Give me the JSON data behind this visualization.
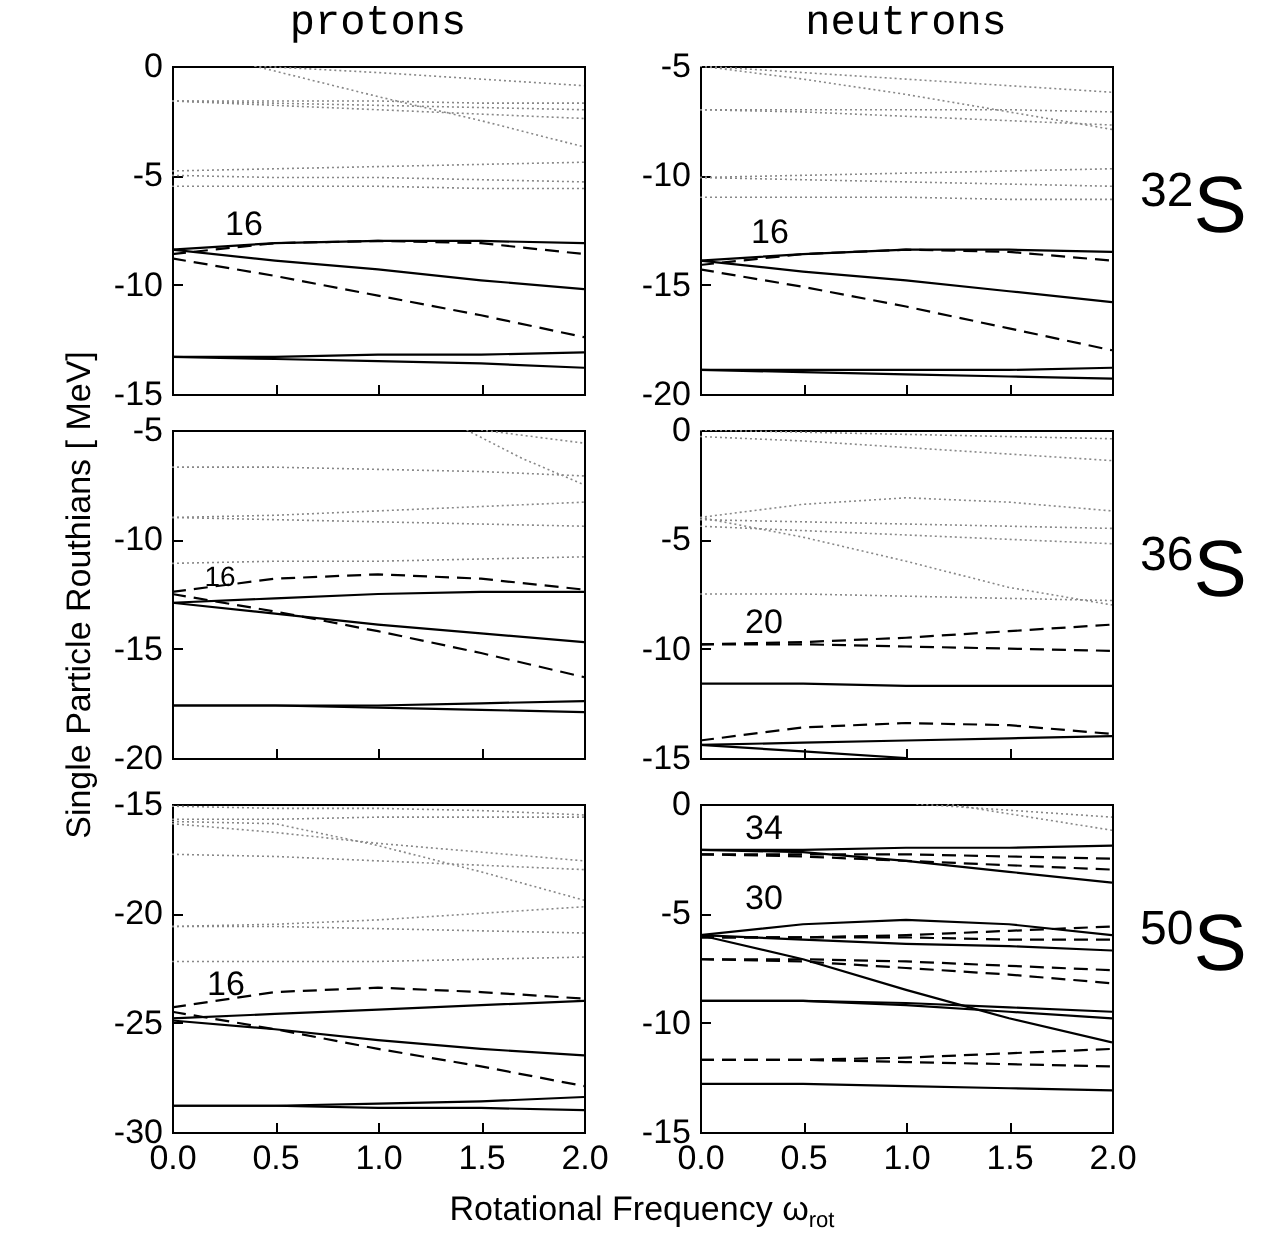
{
  "chart_data": [
    {
      "type": "line",
      "title": "protons",
      "x": [
        0,
        0.5,
        1,
        1.5,
        2
      ],
      "xlim": [
        0,
        2
      ],
      "xticks": [
        0,
        0.5,
        1,
        1.5,
        2
      ],
      "ylim": [
        -15,
        0
      ],
      "yticks": [
        0,
        -5,
        -10,
        -15
      ],
      "tick_labels": "y",
      "annotations": [
        "16"
      ],
      "series": [
        {
          "color": "#888888",
          "line_style": "dotted",
          "x": [
            0.4,
            1,
            1.5,
            2
          ],
          "values": [
            0,
            -0.3,
            -0.6,
            -0.9
          ]
        },
        {
          "color": "#888888",
          "line_style": "dotted",
          "x": [
            0.4,
            1,
            1.5,
            2
          ],
          "values": [
            0,
            -1.4,
            -2.5,
            -3.7
          ]
        },
        {
          "color": "#888888",
          "line_style": "dotted",
          "values": [
            -1.6,
            -1.6,
            -1.6,
            -1.7,
            -1.7
          ]
        },
        {
          "color": "#888888",
          "line_style": "dotted",
          "values": [
            -1.6,
            -1.7,
            -1.8,
            -1.9,
            -2.0
          ]
        },
        {
          "color": "#888888",
          "line_style": "dotted",
          "values": [
            -1.6,
            -1.8,
            -2.0,
            -2.2,
            -2.4
          ]
        },
        {
          "color": "#888888",
          "line_style": "dotted",
          "values": [
            -4.8,
            -4.7,
            -4.6,
            -4.5,
            -4.4
          ]
        },
        {
          "color": "#888888",
          "line_style": "dotted",
          "values": [
            -5.0,
            -5.1,
            -5.1,
            -5.2,
            -5.3
          ]
        },
        {
          "color": "#888888",
          "line_style": "dotted",
          "values": [
            -5.5,
            -5.5,
            -5.5,
            -5.6,
            -5.6
          ]
        },
        {
          "color": "#000000",
          "line_style": "solid",
          "values": [
            -8.4,
            -8.1,
            -8.0,
            -8.0,
            -8.1
          ]
        },
        {
          "color": "#000000",
          "line_style": "solid",
          "values": [
            -8.4,
            -8.9,
            -9.3,
            -9.8,
            -10.2
          ]
        },
        {
          "color": "#000000",
          "line_style": "solid",
          "values": [
            -13.3,
            -13.3,
            -13.2,
            -13.2,
            -13.1
          ]
        },
        {
          "color": "#000000",
          "line_style": "solid",
          "values": [
            -13.3,
            -13.4,
            -13.5,
            -13.6,
            -13.8
          ]
        },
        {
          "color": "#000000",
          "line_style": "dashed",
          "values": [
            -8.6,
            -8.1,
            -8.0,
            -8.1,
            -8.6
          ]
        },
        {
          "color": "#000000",
          "line_style": "dashed",
          "values": [
            -8.8,
            -9.6,
            -10.5,
            -11.4,
            -12.4
          ]
        }
      ]
    },
    {
      "type": "line",
      "title": "neutrons",
      "x": [
        0,
        0.5,
        1,
        1.5,
        2
      ],
      "xlim": [
        0,
        2
      ],
      "xticks": [
        0,
        0.5,
        1,
        1.5,
        2
      ],
      "ylim": [
        -20,
        -5
      ],
      "yticks": [
        -5,
        -10,
        -15,
        -20
      ],
      "tick_labels": "y",
      "annotations": [
        "16",
        "$^{32}$S"
      ],
      "series": [
        {
          "color": "#888888",
          "line_style": "dotted",
          "values": [
            -5.0,
            -5.3,
            -5.6,
            -5.9,
            -6.2
          ]
        },
        {
          "color": "#888888",
          "line_style": "dotted",
          "values": [
            -5.0,
            -5.6,
            -6.3,
            -7.1,
            -7.9
          ]
        },
        {
          "color": "#888888",
          "line_style": "dotted",
          "values": [
            -7.0,
            -7.0,
            -7.0,
            -7.0,
            -7.1
          ]
        },
        {
          "color": "#888888",
          "line_style": "dotted",
          "values": [
            -7.0,
            -7.1,
            -7.3,
            -7.5,
            -7.7
          ]
        },
        {
          "color": "#888888",
          "line_style": "dotted",
          "values": [
            -10.1,
            -10.0,
            -9.9,
            -9.8,
            -9.7
          ]
        },
        {
          "color": "#888888",
          "line_style": "dotted",
          "values": [
            -10.1,
            -10.2,
            -10.3,
            -10.4,
            -10.5
          ]
        },
        {
          "color": "#888888",
          "line_style": "dotted",
          "values": [
            -11.0,
            -11.0,
            -11.0,
            -11.1,
            -11.1
          ]
        },
        {
          "color": "#000000",
          "line_style": "solid",
          "values": [
            -13.9,
            -13.6,
            -13.4,
            -13.4,
            -13.5
          ]
        },
        {
          "color": "#000000",
          "line_style": "solid",
          "values": [
            -13.9,
            -14.4,
            -14.8,
            -15.3,
            -15.8
          ]
        },
        {
          "color": "#000000",
          "line_style": "solid",
          "values": [
            -18.9,
            -18.9,
            -18.9,
            -18.9,
            -18.8
          ]
        },
        {
          "color": "#000000",
          "line_style": "solid",
          "values": [
            -18.9,
            -19.0,
            -19.1,
            -19.2,
            -19.3
          ]
        },
        {
          "color": "#000000",
          "line_style": "dashed",
          "values": [
            -14.1,
            -13.6,
            -13.4,
            -13.5,
            -13.9
          ]
        },
        {
          "color": "#000000",
          "line_style": "dashed",
          "values": [
            -14.3,
            -15.1,
            -16.0,
            -17.0,
            -18.0
          ]
        }
      ]
    },
    {
      "type": "line",
      "ylabel": "Single Particle Routhians [ MeV]",
      "x": [
        0,
        0.5,
        1,
        1.5,
        2
      ],
      "xlim": [
        0,
        2
      ],
      "xticks": [
        0,
        0.5,
        1,
        1.5,
        2
      ],
      "ylim": [
        -20,
        -5
      ],
      "yticks": [
        -5,
        -10,
        -15,
        -20
      ],
      "tick_labels": "y",
      "annotations": [
        "16"
      ],
      "series": [
        {
          "color": "#888888",
          "line_style": "dotted",
          "x": [
            1.43,
            1.7,
            2
          ],
          "values": [
            -5.0,
            -6.3,
            -7.5
          ]
        },
        {
          "color": "#888888",
          "line_style": "dotted",
          "x": [
            1.5,
            2
          ],
          "values": [
            -5.0,
            -5.6
          ]
        },
        {
          "color": "#888888",
          "line_style": "dotted",
          "values": [
            -6.7,
            -6.7,
            -6.8,
            -6.9,
            -7.1
          ]
        },
        {
          "color": "#888888",
          "line_style": "dotted",
          "values": [
            -9.0,
            -8.9,
            -8.7,
            -8.5,
            -8.3
          ]
        },
        {
          "color": "#888888",
          "line_style": "dotted",
          "values": [
            -9.0,
            -9.1,
            -9.2,
            -9.3,
            -9.4
          ]
        },
        {
          "color": "#888888",
          "line_style": "dotted",
          "values": [
            -11.1,
            -11.0,
            -11.0,
            -10.9,
            -10.8
          ]
        },
        {
          "color": "#000000",
          "line_style": "solid",
          "values": [
            -12.9,
            -12.7,
            -12.5,
            -12.4,
            -12.4
          ]
        },
        {
          "color": "#000000",
          "line_style": "solid",
          "values": [
            -12.9,
            -13.4,
            -13.9,
            -14.3,
            -14.7
          ]
        },
        {
          "color": "#000000",
          "line_style": "solid",
          "values": [
            -17.6,
            -17.6,
            -17.6,
            -17.5,
            -17.4
          ]
        },
        {
          "color": "#000000",
          "line_style": "solid",
          "values": [
            -17.6,
            -17.6,
            -17.7,
            -17.8,
            -17.9
          ]
        },
        {
          "color": "#000000",
          "line_style": "dashed",
          "values": [
            -12.4,
            -11.8,
            -11.6,
            -11.8,
            -12.3
          ]
        },
        {
          "color": "#000000",
          "line_style": "dashed",
          "values": [
            -12.5,
            -13.3,
            -14.2,
            -15.2,
            -16.3
          ]
        }
      ]
    },
    {
      "type": "line",
      "x": [
        0,
        0.5,
        1,
        1.5,
        2
      ],
      "xlim": [
        0,
        2
      ],
      "xticks": [
        0,
        0.5,
        1,
        1.5,
        2
      ],
      "ylim": [
        -15,
        0
      ],
      "yticks": [
        0,
        -5,
        -10,
        -15
      ],
      "tick_labels": "y",
      "annotations": [
        "20",
        "$^{36}$S"
      ],
      "series": [
        {
          "color": "#888888",
          "line_style": "dotted",
          "values": [
            0,
            -0.1,
            -0.2,
            -0.3,
            -0.4
          ]
        },
        {
          "color": "#888888",
          "line_style": "dotted",
          "values": [
            -0.3,
            -0.5,
            -0.8,
            -1.1,
            -1.4
          ]
        },
        {
          "color": "#888888",
          "line_style": "dotted",
          "values": [
            -4.0,
            -3.4,
            -3.1,
            -3.3,
            -3.7
          ]
        },
        {
          "color": "#888888",
          "line_style": "dotted",
          "values": [
            -4.1,
            -4.2,
            -4.3,
            -4.4,
            -4.5
          ]
        },
        {
          "color": "#888888",
          "line_style": "dotted",
          "values": [
            -4.4,
            -4.6,
            -4.8,
            -5.0,
            -5.2
          ]
        },
        {
          "color": "#888888",
          "line_style": "dotted",
          "values": [
            -4.0,
            -4.9,
            -6.0,
            -7.2,
            -8.0
          ]
        },
        {
          "color": "#888888",
          "line_style": "dotted",
          "values": [
            -7.5,
            -7.5,
            -7.6,
            -7.7,
            -7.8
          ]
        },
        {
          "color": "#000000",
          "line_style": "solid",
          "values": [
            -11.6,
            -11.6,
            -11.7,
            -11.7,
            -11.7
          ]
        },
        {
          "color": "#000000",
          "line_style": "solid",
          "values": [
            -14.4,
            -14.3,
            -14.2,
            -14.1,
            -14.0
          ]
        },
        {
          "color": "#000000",
          "line_style": "solid",
          "x": [
            0,
            0.5,
            1
          ],
          "values": [
            -14.4,
            -14.7,
            -15.0
          ]
        },
        {
          "color": "#000000",
          "line_style": "dashed",
          "values": [
            -9.8,
            -9.7,
            -9.5,
            -9.2,
            -8.9
          ]
        },
        {
          "color": "#000000",
          "line_style": "dashed",
          "values": [
            -9.8,
            -9.8,
            -9.9,
            -10.0,
            -10.1
          ]
        },
        {
          "color": "#000000",
          "line_style": "dashed",
          "values": [
            -14.2,
            -13.6,
            -13.4,
            -13.5,
            -13.9
          ]
        }
      ]
    },
    {
      "type": "line",
      "xlabel": "Rotational Frequency ω$_{rot}$",
      "x": [
        0,
        0.5,
        1,
        1.5,
        2
      ],
      "xlim": [
        0,
        2
      ],
      "xticks": [
        {
          "value": 0,
          "label": "0.0"
        },
        {
          "value": 0.5,
          "label": "0.5"
        },
        {
          "value": 1,
          "label": "1.0"
        },
        {
          "value": 1.5,
          "label": "1.5"
        },
        {
          "value": 2,
          "label": "2.0"
        }
      ],
      "ylim": [
        -30,
        -15
      ],
      "yticks": [
        -15,
        -20,
        -25,
        -30
      ],
      "annotations": [
        "16"
      ],
      "series": [
        {
          "color": "#888888",
          "line_style": "dotted",
          "values": [
            -15.1,
            -15.2,
            -15.2,
            -15.3,
            -15.5
          ]
        },
        {
          "color": "#888888",
          "line_style": "dotted",
          "values": [
            -15.7,
            -15.7,
            -15.6,
            -15.6,
            -15.6
          ]
        },
        {
          "color": "#888888",
          "line_style": "dotted",
          "values": [
            -15.8,
            -15.9,
            -16.9,
            -18.1,
            -19.4
          ]
        },
        {
          "color": "#888888",
          "line_style": "dotted",
          "values": [
            -15.9,
            -16.3,
            -16.8,
            -17.2,
            -17.6
          ]
        },
        {
          "color": "#888888",
          "line_style": "dotted",
          "values": [
            -17.3,
            -17.4,
            -17.6,
            -17.8,
            -18.0
          ]
        },
        {
          "color": "#888888",
          "line_style": "dotted",
          "values": [
            -20.6,
            -20.5,
            -20.3,
            -20.0,
            -19.7
          ]
        },
        {
          "color": "#888888",
          "line_style": "dotted",
          "values": [
            -20.6,
            -20.6,
            -20.7,
            -20.8,
            -20.9
          ]
        },
        {
          "color": "#888888",
          "line_style": "dotted",
          "values": [
            -22.2,
            -22.2,
            -22.2,
            -22.1,
            -22.0
          ]
        },
        {
          "color": "#000000",
          "line_style": "solid",
          "values": [
            -24.8,
            -24.6,
            -24.4,
            -24.2,
            -24.0
          ]
        },
        {
          "color": "#000000",
          "line_style": "solid",
          "values": [
            -24.9,
            -25.3,
            -25.8,
            -26.2,
            -26.5
          ]
        },
        {
          "color": "#000000",
          "line_style": "solid",
          "values": [
            -28.8,
            -28.8,
            -28.7,
            -28.6,
            -28.4
          ]
        },
        {
          "color": "#000000",
          "line_style": "solid",
          "values": [
            -28.8,
            -28.8,
            -28.9,
            -28.9,
            -29.0
          ]
        },
        {
          "color": "#000000",
          "line_style": "dashed",
          "values": [
            -24.3,
            -23.6,
            -23.4,
            -23.6,
            -23.9
          ]
        },
        {
          "color": "#000000",
          "line_style": "dashed",
          "values": [
            -24.5,
            -25.3,
            -26.2,
            -27.0,
            -27.9
          ]
        }
      ]
    },
    {
      "type": "line",
      "x": [
        0,
        0.5,
        1,
        1.5,
        2
      ],
      "xlim": [
        0,
        2
      ],
      "xticks": [
        {
          "value": 0,
          "label": "0.0"
        },
        {
          "value": 0.5,
          "label": "0.5"
        },
        {
          "value": 1,
          "label": "1.0"
        },
        {
          "value": 1.5,
          "label": "1.5"
        },
        {
          "value": 2,
          "label": "2.0"
        }
      ],
      "ylim": [
        -15,
        0
      ],
      "yticks": [
        0,
        -5,
        -10,
        -15
      ],
      "annotations": [
        "34",
        "30",
        "$^{50}$S"
      ],
      "series": [
        {
          "color": "#888888",
          "line_style": "dotted",
          "x": [
            1.05,
            2
          ],
          "values": [
            0,
            -0.6
          ]
        },
        {
          "color": "#888888",
          "line_style": "dotted",
          "x": [
            1.2,
            2
          ],
          "values": [
            0,
            -1.2
          ]
        },
        {
          "color": "#000000",
          "line_style": "solid",
          "values": [
            -2.1,
            -2.1,
            -2.0,
            -2.0,
            -1.9
          ]
        },
        {
          "color": "#000000",
          "line_style": "solid",
          "values": [
            -2.1,
            -2.2,
            -2.6,
            -3.1,
            -3.6
          ]
        },
        {
          "color": "#000000",
          "line_style": "solid",
          "values": [
            -6.0,
            -5.5,
            -5.3,
            -5.5,
            -6.0
          ]
        },
        {
          "color": "#000000",
          "line_style": "solid",
          "values": [
            -6.0,
            -6.2,
            -6.4,
            -6.5,
            -6.7
          ]
        },
        {
          "color": "#000000",
          "line_style": "solid",
          "values": [
            -6.0,
            -7.1,
            -8.5,
            -9.8,
            -10.9
          ]
        },
        {
          "color": "#000000",
          "line_style": "solid",
          "values": [
            -9.0,
            -9.0,
            -9.1,
            -9.3,
            -9.5
          ]
        },
        {
          "color": "#000000",
          "line_style": "solid",
          "values": [
            -9.0,
            -9.0,
            -9.2,
            -9.5,
            -9.8
          ]
        },
        {
          "color": "#000000",
          "line_style": "solid",
          "values": [
            -12.8,
            -12.8,
            -12.9,
            -13.0,
            -13.1
          ]
        },
        {
          "color": "#000000",
          "line_style": "dashed",
          "values": [
            -2.3,
            -2.3,
            -2.3,
            -2.4,
            -2.5
          ]
        },
        {
          "color": "#000000",
          "line_style": "dashed",
          "values": [
            -2.3,
            -2.4,
            -2.6,
            -2.8,
            -3.0
          ]
        },
        {
          "color": "#000000",
          "line_style": "dashed",
          "values": [
            -6.1,
            -6.1,
            -6.0,
            -5.8,
            -5.6
          ]
        },
        {
          "color": "#000000",
          "line_style": "dashed",
          "values": [
            -6.1,
            -6.1,
            -6.1,
            -6.2,
            -6.2
          ]
        },
        {
          "color": "#000000",
          "line_style": "dashed",
          "values": [
            -7.1,
            -7.1,
            -7.2,
            -7.4,
            -7.6
          ]
        },
        {
          "color": "#000000",
          "line_style": "dashed",
          "values": [
            -7.1,
            -7.2,
            -7.5,
            -7.8,
            -8.2
          ]
        },
        {
          "color": "#000000",
          "line_style": "dashed",
          "values": [
            -11.7,
            -11.7,
            -11.6,
            -11.4,
            -11.2
          ]
        },
        {
          "color": "#000000",
          "line_style": "dashed",
          "values": [
            -11.7,
            -11.7,
            -11.8,
            -11.9,
            -12.0
          ]
        }
      ]
    }
  ]
}
